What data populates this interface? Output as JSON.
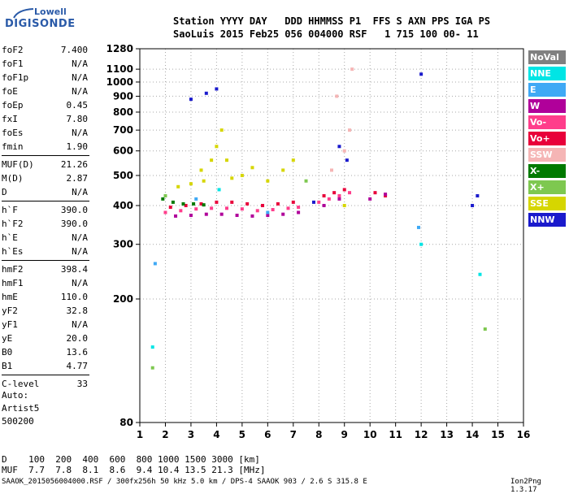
{
  "logo": {
    "line1": "Lowell",
    "line2": "DIGISONDE"
  },
  "header": {
    "line1": "Station YYYY DAY   DDD HHMMSS P1  FFS S AXN PPS IGA PS",
    "line2": "SaoLuis 2015 Feb25 056 004000 RSF   1 715 100 00- 11"
  },
  "params": [
    {
      "k": "foF2",
      "v": "7.400"
    },
    {
      "k": "foF1",
      "v": "N/A"
    },
    {
      "k": "foF1p",
      "v": "N/A"
    },
    {
      "k": "foE",
      "v": "N/A"
    },
    {
      "k": "foEp",
      "v": "0.45"
    },
    {
      "k": "fxI",
      "v": "7.80"
    },
    {
      "k": "foEs",
      "v": "N/A"
    },
    {
      "k": "fmin",
      "v": "1.90"
    },
    {
      "k": "MUF(D)",
      "v": "21.26"
    },
    {
      "k": "M(D)",
      "v": "2.87"
    },
    {
      "k": "D",
      "v": "N/A"
    },
    {
      "k": "h`F",
      "v": "390.0"
    },
    {
      "k": "h`F2",
      "v": "390.0"
    },
    {
      "k": "h`E",
      "v": "N/A"
    },
    {
      "k": "h`Es",
      "v": "N/A"
    },
    {
      "k": "hmF2",
      "v": "398.4"
    },
    {
      "k": "hmF1",
      "v": "N/A"
    },
    {
      "k": "hmE",
      "v": "110.0"
    },
    {
      "k": "yF2",
      "v": "32.8"
    },
    {
      "k": "yF1",
      "v": "N/A"
    },
    {
      "k": "yE",
      "v": "20.0"
    },
    {
      "k": "B0",
      "v": "13.6"
    },
    {
      "k": "B1",
      "v": "4.77"
    },
    {
      "k": "C-level",
      "v": "33"
    }
  ],
  "auto": {
    "l1": "Auto:",
    "l2": "Artist5",
    "l3": "500200"
  },
  "legend": [
    {
      "label": "NoVal",
      "bg": "#808080",
      "fg": "#ffffff"
    },
    {
      "label": "NNE",
      "bg": "#00e5e5",
      "fg": "#ffffff"
    },
    {
      "label": "E",
      "bg": "#3fa9f5",
      "fg": "#ffffff"
    },
    {
      "label": "W",
      "bg": "#b0009a",
      "fg": "#ffffff"
    },
    {
      "label": "Vo-",
      "bg": "#ff3d8b",
      "fg": "#ffffff"
    },
    {
      "label": "Vo+",
      "bg": "#e8003a",
      "fg": "#ffffff"
    },
    {
      "label": "SSW",
      "bg": "#f5b5b5",
      "fg": "#ffffff"
    },
    {
      "label": "X-",
      "bg": "#007a00",
      "fg": "#ffffff"
    },
    {
      "label": "X+",
      "bg": "#7ec850",
      "fg": "#ffffff"
    },
    {
      "label": "SSE",
      "bg": "#d6d600",
      "fg": "#ffffff"
    },
    {
      "label": "NNW",
      "bg": "#1a1acc",
      "fg": "#ffffff"
    }
  ],
  "bottom": {
    "d_row": "D    100  200  400  600  800 1000 1500 3000 [km]",
    "muf_row": "MUF  7.7  7.8  8.1  8.6  9.4 10.4 13.5 21.3 [MHz]"
  },
  "footer": "SAAOK_2015056004000.RSF / 300fx256h 50 kHz 5.0 km / DPS-4 SAAOK 903 / 2.6 S 315.8 E",
  "version": "Ion2Png 1.3.17",
  "chart_data": {
    "type": "scatter",
    "xlim": [
      1,
      16
    ],
    "ylim": [
      80,
      1280
    ],
    "y_scale": "log",
    "xticks": [
      1,
      2,
      3,
      4,
      5,
      6,
      7,
      8,
      9,
      10,
      11,
      12,
      13,
      14,
      15,
      16
    ],
    "yticks": [
      80,
      200,
      300,
      400,
      500,
      600,
      700,
      800,
      900,
      1000,
      1100,
      1280
    ],
    "grid": true,
    "series": [
      {
        "name": "Vo+",
        "color": "#e8003a",
        "points": [
          [
            2.2,
            395
          ],
          [
            2.8,
            400
          ],
          [
            3.4,
            405
          ],
          [
            4.0,
            410
          ],
          [
            4.6,
            410
          ],
          [
            5.2,
            405
          ],
          [
            5.8,
            400
          ],
          [
            6.4,
            405
          ],
          [
            7.0,
            410
          ],
          [
            8.2,
            430
          ],
          [
            8.6,
            440
          ],
          [
            9.0,
            450
          ],
          [
            10.2,
            440
          ],
          [
            10.6,
            430
          ]
        ]
      },
      {
        "name": "Vo-",
        "color": "#ff3d8b",
        "points": [
          [
            2.0,
            380
          ],
          [
            2.6,
            385
          ],
          [
            3.2,
            390
          ],
          [
            3.8,
            392
          ],
          [
            4.4,
            392
          ],
          [
            5.0,
            390
          ],
          [
            5.6,
            385
          ],
          [
            6.2,
            388
          ],
          [
            6.8,
            392
          ],
          [
            7.2,
            395
          ],
          [
            8.0,
            410
          ],
          [
            8.4,
            420
          ],
          [
            8.8,
            430
          ],
          [
            9.2,
            440
          ]
        ]
      },
      {
        "name": "W",
        "color": "#b0009a",
        "points": [
          [
            2.4,
            370
          ],
          [
            3.0,
            372
          ],
          [
            3.6,
            375
          ],
          [
            4.2,
            375
          ],
          [
            4.8,
            372
          ],
          [
            5.4,
            370
          ],
          [
            6.0,
            372
          ],
          [
            6.6,
            375
          ],
          [
            7.2,
            380
          ],
          [
            8.2,
            400
          ],
          [
            8.8,
            420
          ],
          [
            10.0,
            420
          ],
          [
            10.6,
            435
          ]
        ]
      },
      {
        "name": "SSE",
        "color": "#d6d600",
        "points": [
          [
            3.0,
            470
          ],
          [
            3.4,
            520
          ],
          [
            3.8,
            560
          ],
          [
            4.0,
            620
          ],
          [
            4.2,
            700
          ],
          [
            4.4,
            560
          ],
          [
            5.0,
            500
          ],
          [
            5.4,
            530
          ],
          [
            6.0,
            480
          ],
          [
            6.6,
            520
          ],
          [
            7.0,
            560
          ],
          [
            2.5,
            460
          ],
          [
            3.5,
            480
          ],
          [
            4.6,
            490
          ],
          [
            9.0,
            400
          ]
        ]
      },
      {
        "name": "X-",
        "color": "#007a00",
        "points": [
          [
            1.9,
            420
          ],
          [
            2.3,
            410
          ],
          [
            2.7,
            405
          ],
          [
            3.1,
            405
          ],
          [
            3.5,
            402
          ]
        ]
      },
      {
        "name": "NNW",
        "color": "#1a1acc",
        "points": [
          [
            3.0,
            880
          ],
          [
            3.6,
            920
          ],
          [
            4.0,
            950
          ],
          [
            8.8,
            620
          ],
          [
            9.1,
            560
          ],
          [
            12.0,
            1060
          ],
          [
            14.0,
            400
          ],
          [
            14.2,
            430
          ],
          [
            7.8,
            410
          ]
        ]
      },
      {
        "name": "SSW",
        "color": "#f5b5b5",
        "points": [
          [
            8.5,
            520
          ],
          [
            9.0,
            600
          ],
          [
            9.2,
            700
          ],
          [
            9.3,
            1100
          ],
          [
            8.7,
            900
          ]
        ]
      },
      {
        "name": "NNE",
        "color": "#00e5e5",
        "points": [
          [
            1.5,
            140
          ],
          [
            14.3,
            240
          ],
          [
            4.1,
            450
          ],
          [
            12.0,
            300
          ]
        ]
      },
      {
        "name": "X+",
        "color": "#7ec850",
        "points": [
          [
            1.5,
            120
          ],
          [
            14.5,
            160
          ],
          [
            2.0,
            430
          ],
          [
            7.5,
            480
          ]
        ]
      },
      {
        "name": "E",
        "color": "#3fa9f5",
        "points": [
          [
            1.6,
            260
          ],
          [
            3.2,
            420
          ],
          [
            6.0,
            380
          ],
          [
            11.9,
            340
          ]
        ]
      }
    ]
  }
}
